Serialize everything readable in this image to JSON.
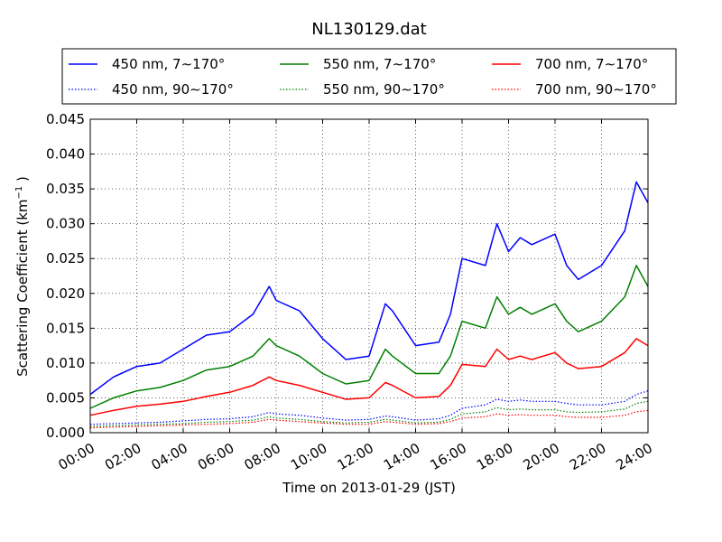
{
  "chart_data": {
    "type": "line",
    "title": "NL130129.dat",
    "xlabel": "Time on 2013-01-29 (JST)",
    "ylabel": "Scattering Coefficient (km⁻¹ )",
    "ylabel_main": "Scattering Coefficient (km",
    "ylabel_sup": "−1",
    "ylabel_end": " )",
    "xlim": [
      0,
      24
    ],
    "ylim": [
      0,
      0.045
    ],
    "grid": true,
    "legend_position": "top",
    "x_ticks": [
      0,
      2,
      4,
      6,
      8,
      10,
      12,
      14,
      16,
      18,
      20,
      22,
      24
    ],
    "x_tick_labels": [
      "00:00",
      "02:00",
      "04:00",
      "06:00",
      "08:00",
      "10:00",
      "12:00",
      "14:00",
      "16:00",
      "18:00",
      "20:00",
      "22:00",
      "24:00"
    ],
    "y_ticks": [
      0,
      0.005,
      0.01,
      0.015,
      0.02,
      0.025,
      0.03,
      0.035,
      0.04,
      0.045
    ],
    "y_tick_labels": [
      "0.000",
      "0.005",
      "0.010",
      "0.015",
      "0.020",
      "0.025",
      "0.030",
      "0.035",
      "0.040",
      "0.045"
    ],
    "x": [
      0,
      1,
      2,
      3,
      4,
      5,
      6,
      7,
      7.7,
      8,
      9,
      10,
      11,
      12,
      12.7,
      13,
      14,
      15,
      15.5,
      16,
      17,
      17.5,
      18,
      18.5,
      19,
      20,
      20.5,
      21,
      22,
      23,
      23.5,
      24
    ],
    "series": [
      {
        "name": "450 nm, 7∼170°",
        "color": "#0000ff",
        "style": "solid",
        "values": [
          0.0055,
          0.008,
          0.0095,
          0.01,
          0.012,
          0.014,
          0.0145,
          0.017,
          0.021,
          0.019,
          0.0175,
          0.0135,
          0.0105,
          0.011,
          0.0185,
          0.0175,
          0.0125,
          0.013,
          0.017,
          0.025,
          0.024,
          0.03,
          0.026,
          0.028,
          0.027,
          0.0285,
          0.024,
          0.022,
          0.024,
          0.029,
          0.036,
          0.033
        ]
      },
      {
        "name": "450 nm, 90∼170°",
        "color": "#0000ff",
        "style": "dotted",
        "values": [
          0.0012,
          0.0013,
          0.0014,
          0.0015,
          0.0017,
          0.0019,
          0.002,
          0.0023,
          0.0029,
          0.0027,
          0.0025,
          0.0021,
          0.0018,
          0.0019,
          0.0024,
          0.0023,
          0.0018,
          0.002,
          0.0025,
          0.0035,
          0.004,
          0.0048,
          0.0045,
          0.0047,
          0.0045,
          0.0045,
          0.0042,
          0.004,
          0.004,
          0.0045,
          0.0055,
          0.006
        ]
      },
      {
        "name": "550 nm, 7∼170°",
        "color": "#008000",
        "style": "solid",
        "values": [
          0.0035,
          0.005,
          0.006,
          0.0065,
          0.0075,
          0.009,
          0.0095,
          0.011,
          0.0135,
          0.0125,
          0.011,
          0.0085,
          0.007,
          0.0075,
          0.012,
          0.011,
          0.0085,
          0.0085,
          0.011,
          0.016,
          0.015,
          0.0195,
          0.017,
          0.018,
          0.017,
          0.0185,
          0.016,
          0.0145,
          0.016,
          0.0195,
          0.024,
          0.021
        ]
      },
      {
        "name": "550 nm, 90∼170°",
        "color": "#008000",
        "style": "dotted",
        "values": [
          0.0009,
          0.001,
          0.0011,
          0.0012,
          0.0013,
          0.0015,
          0.0016,
          0.0018,
          0.0023,
          0.0021,
          0.0019,
          0.0016,
          0.0014,
          0.0015,
          0.0019,
          0.0018,
          0.0014,
          0.0015,
          0.0019,
          0.0027,
          0.003,
          0.0036,
          0.0033,
          0.0034,
          0.0033,
          0.0033,
          0.003,
          0.0029,
          0.003,
          0.0034,
          0.0042,
          0.0045
        ]
      },
      {
        "name": "700 nm, 7∼170°",
        "color": "#ff0000",
        "style": "solid",
        "values": [
          0.0025,
          0.0032,
          0.0038,
          0.0041,
          0.0045,
          0.0052,
          0.0058,
          0.0068,
          0.008,
          0.0075,
          0.0068,
          0.0058,
          0.0048,
          0.005,
          0.0072,
          0.0068,
          0.005,
          0.0052,
          0.0068,
          0.0098,
          0.0095,
          0.012,
          0.0105,
          0.011,
          0.0105,
          0.0115,
          0.01,
          0.0092,
          0.0095,
          0.0115,
          0.0135,
          0.0125
        ]
      },
      {
        "name": "700 nm, 90∼170°",
        "color": "#ff0000",
        "style": "dotted",
        "values": [
          0.0007,
          0.0008,
          0.0009,
          0.001,
          0.0011,
          0.0012,
          0.0013,
          0.0015,
          0.0019,
          0.0018,
          0.0016,
          0.0014,
          0.0012,
          0.0012,
          0.0016,
          0.0015,
          0.0012,
          0.0013,
          0.0016,
          0.0021,
          0.0023,
          0.0027,
          0.0025,
          0.0026,
          0.0025,
          0.0025,
          0.0023,
          0.0022,
          0.0022,
          0.0025,
          0.003,
          0.0032
        ]
      }
    ]
  }
}
